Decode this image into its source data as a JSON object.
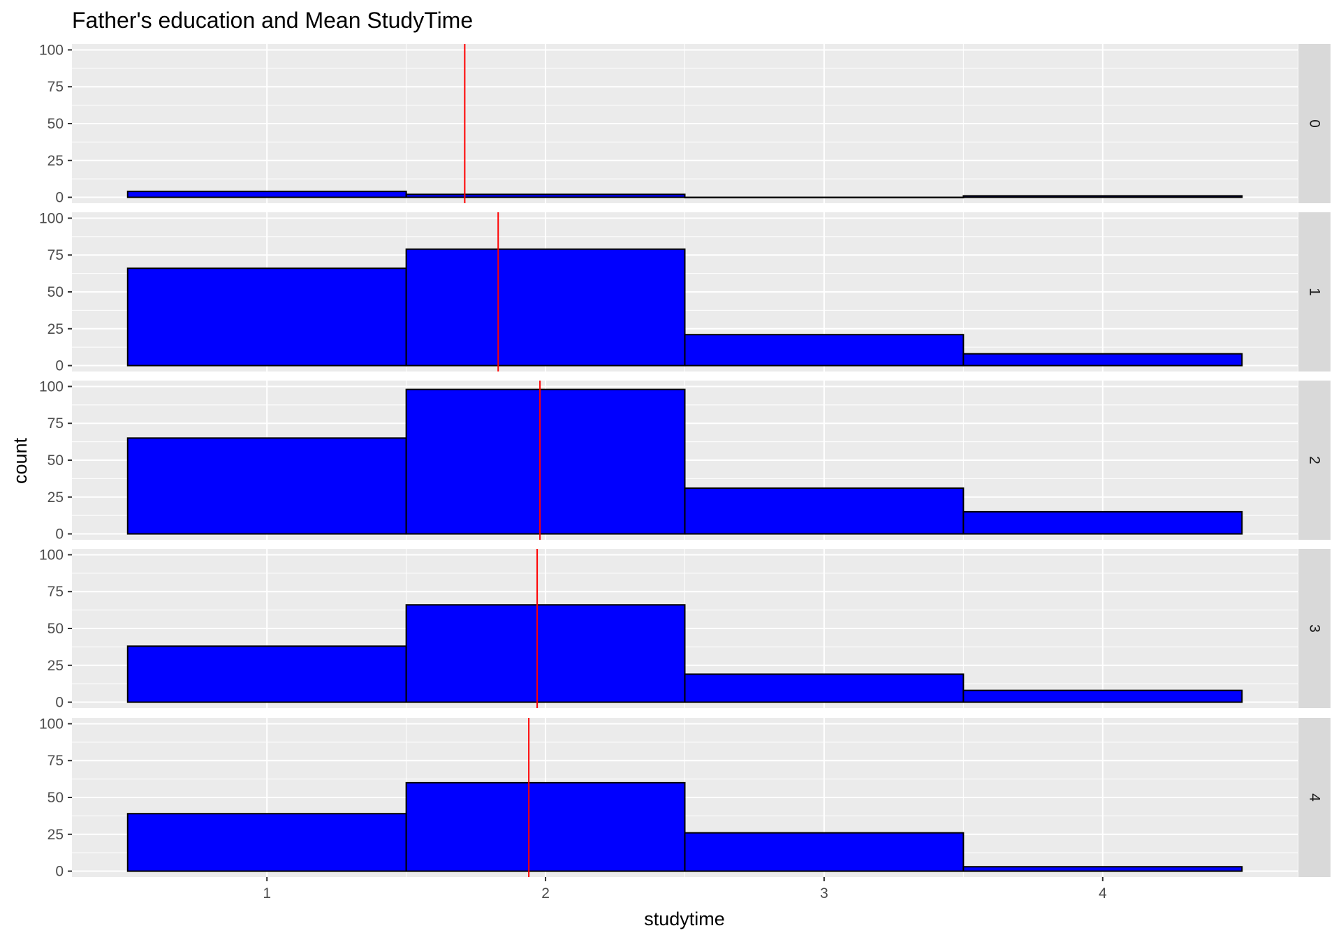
{
  "chart_data": {
    "type": "bar",
    "title": "Father's education and  Mean StudyTime",
    "xlabel": "studytime",
    "ylabel": "count",
    "xlim": [
      0.3,
      4.7
    ],
    "ylim": [
      -4,
      104
    ],
    "x_ticks": [
      1,
      2,
      3,
      4
    ],
    "y_ticks": [
      0,
      25,
      50,
      75,
      100
    ],
    "bins": [
      [
        0.5,
        1.5
      ],
      [
        1.5,
        2.5
      ],
      [
        2.5,
        3.5
      ],
      [
        3.5,
        4.5
      ]
    ],
    "grid": true,
    "colors": {
      "bar_fill": "#0000FF",
      "bar_outline": "#000000",
      "mean_line": "#FF0000",
      "panel_background": "#EBEBEB",
      "grid": "#FFFFFF",
      "strip_background": "#D9D9D9"
    },
    "facets": [
      {
        "label": "0",
        "values": [
          4,
          2,
          0,
          1
        ],
        "mean": 1.71
      },
      {
        "label": "1",
        "values": [
          66,
          79,
          21,
          8
        ],
        "mean": 1.83
      },
      {
        "label": "2",
        "values": [
          65,
          98,
          31,
          15
        ],
        "mean": 1.98
      },
      {
        "label": "3",
        "values": [
          38,
          66,
          19,
          8
        ],
        "mean": 1.97
      },
      {
        "label": "4",
        "values": [
          39,
          60,
          26,
          3
        ],
        "mean": 1.94
      }
    ]
  }
}
